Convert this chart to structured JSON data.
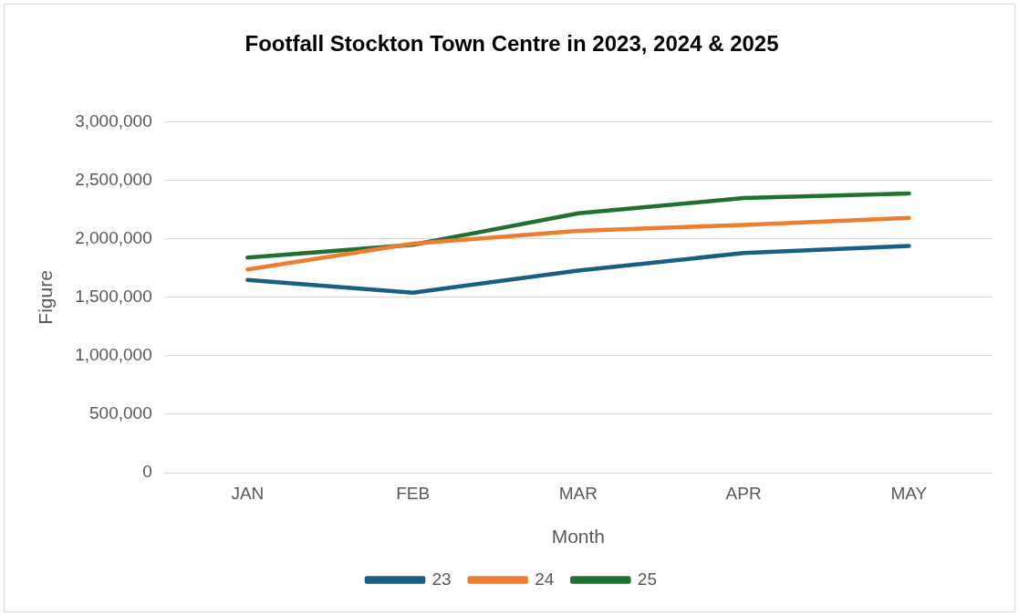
{
  "chart_data": {
    "type": "line",
    "title": "Footfall Stockton Town Centre in 2023, 2024 & 2025",
    "xlabel": "Month",
    "ylabel": "Figure",
    "categories": [
      "JAN",
      "FEB",
      "MAR",
      "APR",
      "MAY"
    ],
    "series": [
      {
        "name": "23",
        "color": "#1b5e82",
        "values": [
          1650000,
          1540000,
          1730000,
          1880000,
          1940000
        ]
      },
      {
        "name": "24",
        "color": "#ed7d31",
        "values": [
          1740000,
          1960000,
          2070000,
          2120000,
          2180000
        ]
      },
      {
        "name": "25",
        "color": "#217031",
        "values": [
          1840000,
          1950000,
          2220000,
          2350000,
          2390000
        ]
      }
    ],
    "ylim": [
      0,
      3000000
    ],
    "yticks": [
      0,
      {
        "value": 500000,
        "label": "500,000"
      },
      {
        "value": 1000000,
        "label": "1,000,000"
      },
      {
        "value": 1500000,
        "label": "1,500,000"
      },
      {
        "value": 2000000,
        "label": "2,000,000"
      },
      {
        "value": 2500000,
        "label": "2,500,000"
      },
      {
        "value": 3000000,
        "label": "3,000,000"
      }
    ],
    "grid": "y",
    "legend": "bottom",
    "marker": "none",
    "line_style": "solid"
  }
}
